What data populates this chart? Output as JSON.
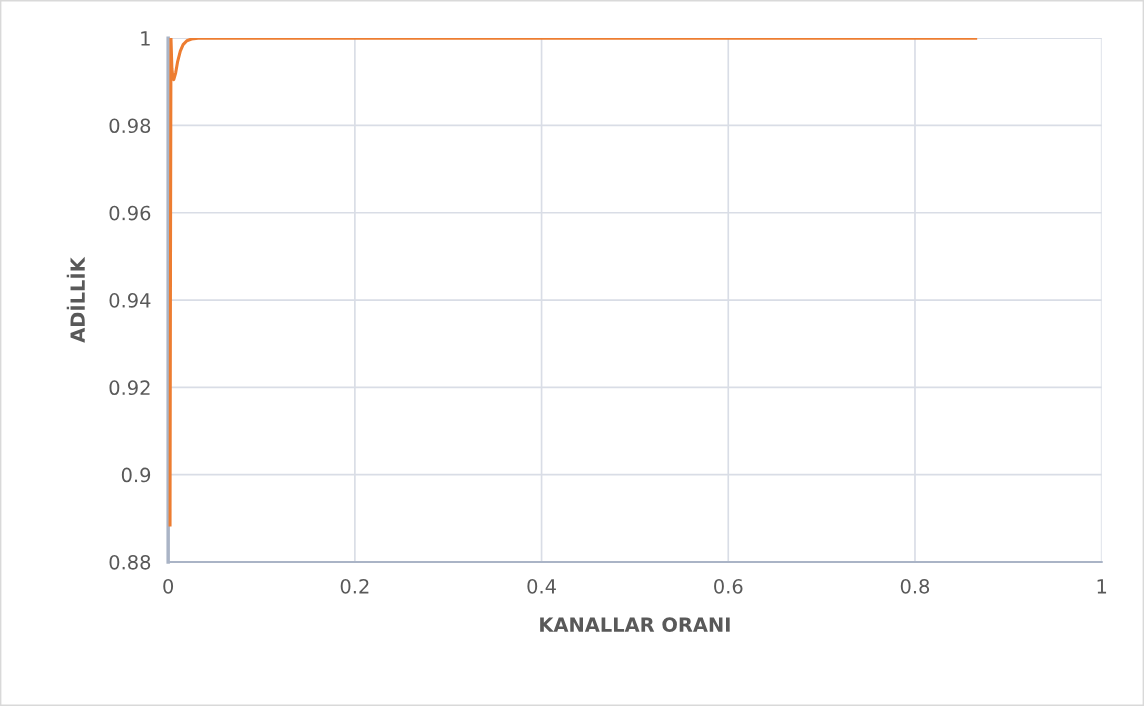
{
  "chart_data": {
    "type": "line",
    "xlabel": "KANALLAR ORANI",
    "ylabel": "ADİLLİK",
    "series": [
      {
        "color": "#ed7d31",
        "x": [
          0.002,
          0.0025,
          0.003,
          0.004,
          0.005,
          0.006,
          0.008,
          0.01,
          0.013,
          0.016,
          0.02,
          0.025,
          0.032,
          0.05,
          0.1,
          0.3,
          0.5,
          0.7,
          0.865
        ],
        "values": [
          0.8885,
          0.95,
          1.0,
          0.993,
          0.991,
          0.9905,
          0.992,
          0.9945,
          0.997,
          0.9985,
          0.9994,
          0.9998,
          1.0,
          1.0,
          1.0,
          1.0,
          1.0,
          1.0,
          1.0
        ]
      }
    ],
    "xlim": [
      0,
      1
    ],
    "xticks": [
      0,
      0.2,
      0.4,
      0.6,
      0.8,
      1
    ],
    "ylim": [
      0.88,
      1
    ],
    "yticks": [
      0.88,
      0.9,
      0.92,
      0.94,
      0.96,
      0.98,
      1
    ],
    "grid": true,
    "legend": false,
    "marker": "none",
    "line_style": "solid"
  }
}
